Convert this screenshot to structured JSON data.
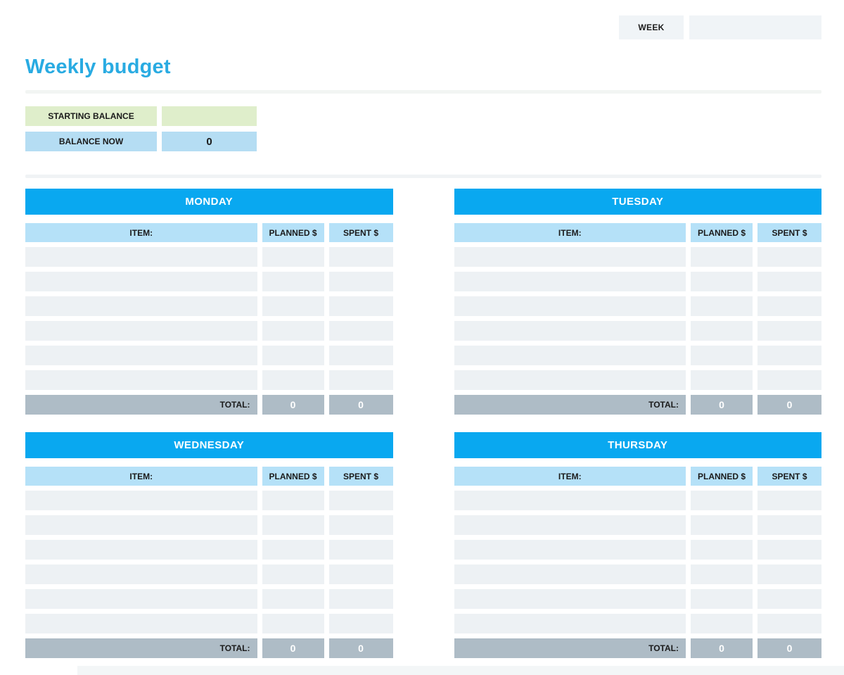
{
  "week": {
    "label": "WEEK",
    "value": ""
  },
  "title": "Weekly budget",
  "balance": {
    "starting_label": "STARTING BALANCE",
    "starting_value": "",
    "now_label": "BALANCE NOW",
    "now_value": "0"
  },
  "columns": {
    "item": "ITEM:",
    "planned": "PLANNED $",
    "spent": "SPENT $"
  },
  "totals": {
    "label": "TOTAL:"
  },
  "layout": {
    "row_count": 6
  },
  "tables": [
    {
      "title": "MONDAY",
      "planned_total": "0",
      "spent_total": "0"
    },
    {
      "title": "TUESDAY",
      "planned_total": "0",
      "spent_total": "0"
    },
    {
      "title": "WEDNESDAY",
      "planned_total": "0",
      "spent_total": "0"
    },
    {
      "title": "THURSDAY",
      "planned_total": "0",
      "spent_total": "0"
    }
  ],
  "colors": {
    "title_blue": "#29abe2",
    "day_header_blue": "#09a8f0",
    "column_header_blue": "#b5e1f8",
    "balance_blue": "#b5ddf3",
    "starting_green": "#dfeecb",
    "row_gray": "#edf1f4",
    "total_gray": "#aebcc6",
    "week_box_gray": "#f0f4f7"
  }
}
